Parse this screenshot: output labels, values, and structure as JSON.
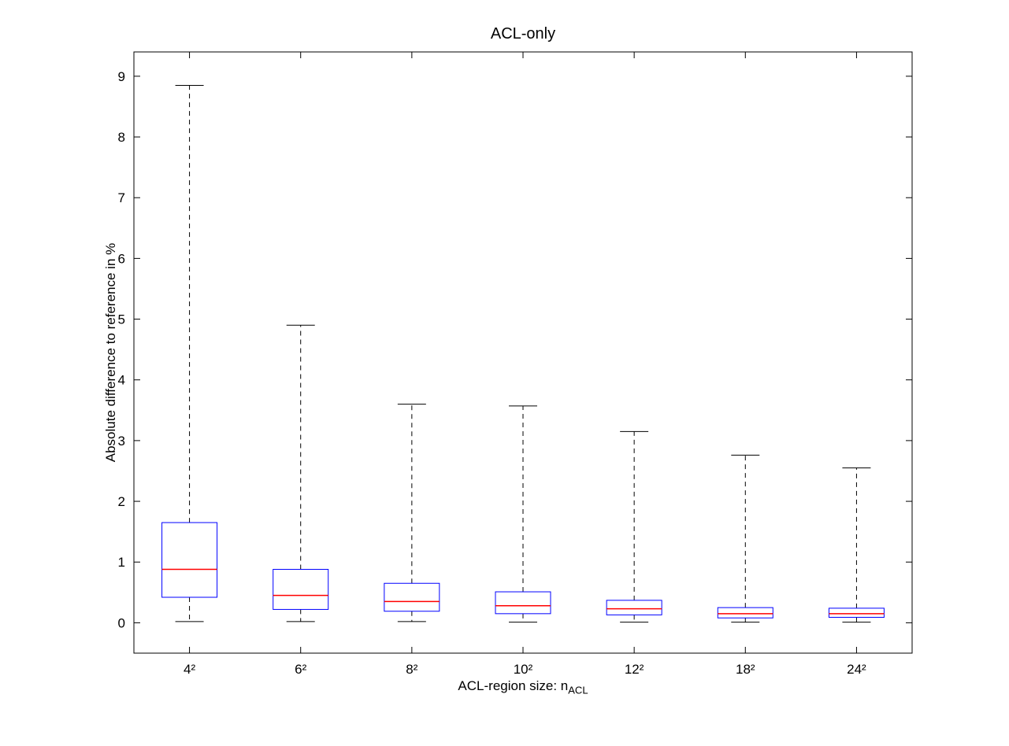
{
  "chart_data": {
    "type": "boxplot",
    "title": "ACL-only",
    "xlabel": "ACL-region size: n_ACL",
    "xlabel_main": "ACL-region size: n",
    "xlabel_sub": "ACL",
    "ylabel": "Absolute difference to reference in %",
    "categories": [
      "4²",
      "6²",
      "8²",
      "10²",
      "12²",
      "18²",
      "24²"
    ],
    "yticks": [
      0,
      1,
      2,
      3,
      4,
      5,
      6,
      7,
      8,
      9
    ],
    "ylim": [
      -0.5,
      9.4
    ],
    "grid": false,
    "legend": "none",
    "colors": {
      "box": "#0000ff",
      "median": "#ff0000",
      "whisker": "#000000",
      "axis": "#000000",
      "background": "#ffffff"
    },
    "series": [
      {
        "category": "4²",
        "whisker_low": 0.02,
        "q1": 0.42,
        "median": 0.88,
        "q3": 1.65,
        "whisker_high": 8.85
      },
      {
        "category": "6²",
        "whisker_low": 0.02,
        "q1": 0.22,
        "median": 0.45,
        "q3": 0.88,
        "whisker_high": 4.9
      },
      {
        "category": "8²",
        "whisker_low": 0.02,
        "q1": 0.19,
        "median": 0.35,
        "q3": 0.65,
        "whisker_high": 3.6
      },
      {
        "category": "10²",
        "whisker_low": 0.01,
        "q1": 0.15,
        "median": 0.28,
        "q3": 0.51,
        "whisker_high": 3.57
      },
      {
        "category": "12²",
        "whisker_low": 0.01,
        "q1": 0.13,
        "median": 0.23,
        "q3": 0.37,
        "whisker_high": 3.15
      },
      {
        "category": "18²",
        "whisker_low": 0.01,
        "q1": 0.08,
        "median": 0.15,
        "q3": 0.25,
        "whisker_high": 2.76
      },
      {
        "category": "24²",
        "whisker_low": 0.01,
        "q1": 0.09,
        "median": 0.15,
        "q3": 0.24,
        "whisker_high": 2.55
      }
    ]
  }
}
